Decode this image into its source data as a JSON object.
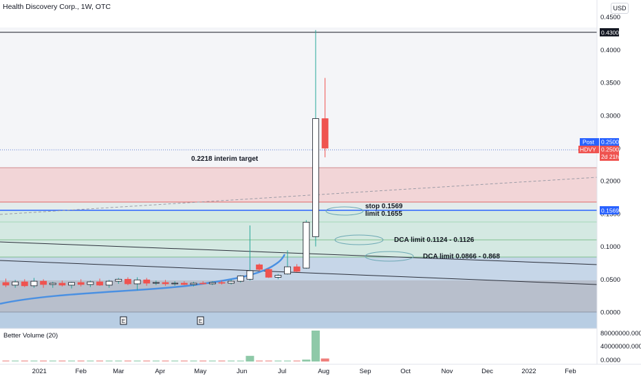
{
  "header": {
    "title": "Health Discovery Corp., 1W, OTC",
    "currency": "USD"
  },
  "price_axis": {
    "ticks": [
      "0.4500",
      "0.4000",
      "0.3500",
      "0.3000",
      "0.2500",
      "0.2000",
      "0.1500",
      "0.1000",
      "0.0500",
      "0.0000"
    ],
    "high_tag": "0.4300",
    "post_label": "Post",
    "post_value": "0.2500",
    "symbol_label": "HDVY",
    "symbol_value": "0.2500",
    "countdown": "2d 21h",
    "stop_value": "0.1569"
  },
  "volume_axis": {
    "ticks": [
      "80000000.0000",
      "40000000.0000",
      "0.0000"
    ]
  },
  "time_axis": {
    "ticks": [
      "2021",
      "Feb",
      "Mar",
      "Apr",
      "May",
      "Jun",
      "Jul",
      "Aug",
      "Sep",
      "Oct",
      "Nov",
      "Dec",
      "2022",
      "Feb"
    ]
  },
  "indicator": {
    "name": "Better Volume (20)"
  },
  "earnings_markers": [
    "E",
    "E"
  ],
  "annotations": {
    "interim_target": "0.2218 interim target",
    "stop": "stop 0.1569",
    "limit": "limit 0.1655",
    "dca1": "DCA limit 0.1124 - 0.1126",
    "dca2": "DCA limit 0.0866 - 0.868"
  },
  "colors": {
    "up": "#ffffff",
    "down": "#ef5350",
    "wick_up": "#26a69a",
    "ma": "#4a90e2",
    "stop_line": "#2962ff"
  },
  "chart_data": {
    "type": "candlestick",
    "title": "Health Discovery Corp., 1W, OTC",
    "ylim": [
      0,
      0.4687
    ],
    "levels": {
      "high": 0.43,
      "last": 0.25,
      "interim_target": 0.2218,
      "red_zone_low": 0.1655,
      "stop": 0.1569,
      "dca1": 0.1125,
      "dca2": 0.0866
    },
    "candles": [
      {
        "x": "2020-12-07",
        "o": 0.045,
        "h": 0.051,
        "l": 0.038,
        "c": 0.041
      },
      {
        "x": "2020-12-14",
        "o": 0.041,
        "h": 0.049,
        "l": 0.037,
        "c": 0.046
      },
      {
        "x": "2020-12-21",
        "o": 0.046,
        "h": 0.05,
        "l": 0.038,
        "c": 0.04
      },
      {
        "x": "2020-12-28",
        "o": 0.04,
        "h": 0.052,
        "l": 0.037,
        "c": 0.047
      },
      {
        "x": "2021-01-04",
        "o": 0.047,
        "h": 0.05,
        "l": 0.037,
        "c": 0.042
      },
      {
        "x": "2021-01-11",
        "o": 0.042,
        "h": 0.046,
        "l": 0.037,
        "c": 0.044
      },
      {
        "x": "2021-01-18",
        "o": 0.044,
        "h": 0.048,
        "l": 0.039,
        "c": 0.041
      },
      {
        "x": "2021-01-25",
        "o": 0.041,
        "h": 0.046,
        "l": 0.036,
        "c": 0.045
      },
      {
        "x": "2021-02-01",
        "o": 0.045,
        "h": 0.05,
        "l": 0.039,
        "c": 0.042
      },
      {
        "x": "2021-02-08",
        "o": 0.042,
        "h": 0.048,
        "l": 0.038,
        "c": 0.046
      },
      {
        "x": "2021-02-15",
        "o": 0.046,
        "h": 0.051,
        "l": 0.04,
        "c": 0.041
      },
      {
        "x": "2021-02-22",
        "o": 0.041,
        "h": 0.049,
        "l": 0.037,
        "c": 0.047
      },
      {
        "x": "2021-03-01",
        "o": 0.047,
        "h": 0.052,
        "l": 0.043,
        "c": 0.05
      },
      {
        "x": "2021-03-08",
        "o": 0.05,
        "h": 0.053,
        "l": 0.041,
        "c": 0.043
      },
      {
        "x": "2021-03-15",
        "o": 0.043,
        "h": 0.053,
        "l": 0.033,
        "c": 0.049
      },
      {
        "x": "2021-03-22",
        "o": 0.049,
        "h": 0.052,
        "l": 0.04,
        "c": 0.044
      },
      {
        "x": "2021-03-29",
        "o": 0.044,
        "h": 0.048,
        "l": 0.041,
        "c": 0.045
      },
      {
        "x": "2021-04-05",
        "o": 0.045,
        "h": 0.049,
        "l": 0.04,
        "c": 0.043
      },
      {
        "x": "2021-04-12",
        "o": 0.043,
        "h": 0.047,
        "l": 0.04,
        "c": 0.044
      },
      {
        "x": "2021-04-19",
        "o": 0.044,
        "h": 0.047,
        "l": 0.041,
        "c": 0.042
      },
      {
        "x": "2021-04-26",
        "o": 0.042,
        "h": 0.046,
        "l": 0.039,
        "c": 0.044
      },
      {
        "x": "2021-05-03",
        "o": 0.044,
        "h": 0.047,
        "l": 0.042,
        "c": 0.043
      },
      {
        "x": "2021-05-10",
        "o": 0.043,
        "h": 0.047,
        "l": 0.041,
        "c": 0.045
      },
      {
        "x": "2021-05-17",
        "o": 0.045,
        "h": 0.048,
        "l": 0.042,
        "c": 0.044
      },
      {
        "x": "2021-05-24",
        "o": 0.044,
        "h": 0.05,
        "l": 0.042,
        "c": 0.047
      },
      {
        "x": "2021-05-31",
        "o": 0.047,
        "h": 0.056,
        "l": 0.045,
        "c": 0.055
      },
      {
        "x": "2021-06-07",
        "o": 0.05,
        "h": 0.132,
        "l": 0.048,
        "c": 0.063
      },
      {
        "x": "2021-06-14",
        "o": 0.072,
        "h": 0.074,
        "l": 0.062,
        "c": 0.065
      },
      {
        "x": "2021-06-21",
        "o": 0.065,
        "h": 0.066,
        "l": 0.052,
        "c": 0.053
      },
      {
        "x": "2021-06-28",
        "o": 0.053,
        "h": 0.058,
        "l": 0.05,
        "c": 0.056
      },
      {
        "x": "2021-07-05",
        "o": 0.058,
        "h": 0.094,
        "l": 0.057,
        "c": 0.069
      },
      {
        "x": "2021-07-12",
        "o": 0.069,
        "h": 0.073,
        "l": 0.061,
        "c": 0.062
      },
      {
        "x": "2021-07-19",
        "o": 0.067,
        "h": 0.14,
        "l": 0.066,
        "c": 0.137
      },
      {
        "x": "2021-07-26",
        "o": 0.115,
        "h": 0.43,
        "l": 0.1,
        "c": 0.295
      },
      {
        "x": "2021-08-02",
        "o": 0.295,
        "h": 0.357,
        "l": 0.236,
        "c": 0.25
      }
    ],
    "volume": [
      {
        "x": "2021-06-07",
        "v": 15000000
      },
      {
        "x": "2021-07-19",
        "v": 5000000
      },
      {
        "x": "2021-07-26",
        "v": 82000000
      },
      {
        "x": "2021-08-02",
        "v": 8000000
      }
    ]
  }
}
